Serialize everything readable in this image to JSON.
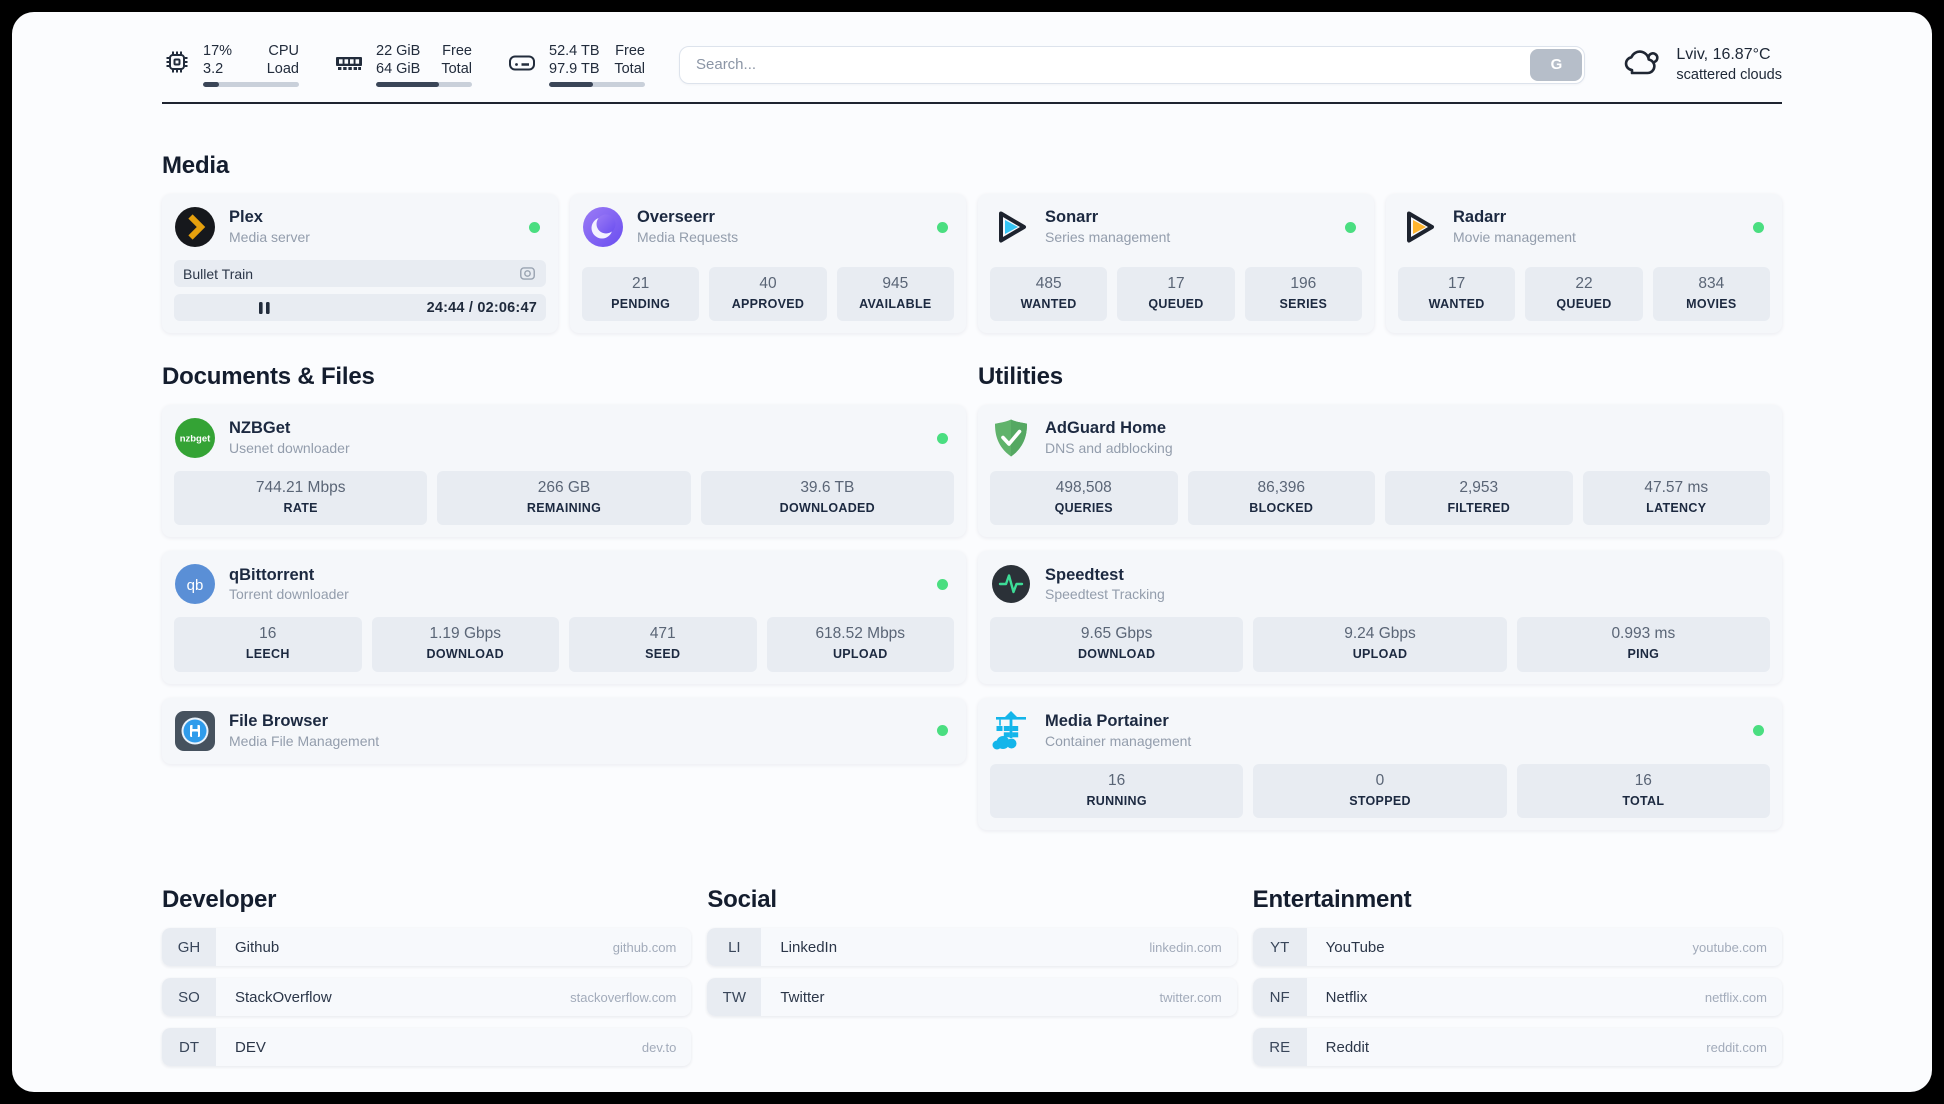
{
  "colors": {
    "status_online": "#4ade80",
    "progress_fill": "#3a4557"
  },
  "header": {
    "stats": [
      {
        "icon": "cpu-icon",
        "value1": "17%",
        "label1": "CPU",
        "value2": "3.2",
        "label2": "Load",
        "progress": 17
      },
      {
        "icon": "ram-icon",
        "value1": "22 GiB",
        "label1": "Free",
        "value2": "64 GiB",
        "label2": "Total",
        "progress": 66
      },
      {
        "icon": "disk-icon",
        "value1": "52.4 TB",
        "label1": "Free",
        "value2": "97.9 TB",
        "label2": "Total",
        "progress": 46
      }
    ],
    "search": {
      "placeholder": "Search...",
      "button_label": "G"
    },
    "weather": {
      "location_temp": "Lviv, 16.87°C",
      "condition": "scattered clouds"
    }
  },
  "sections": {
    "media": "Media",
    "documents": "Documents & Files",
    "utilities": "Utilities",
    "developer": "Developer",
    "social": "Social",
    "entertainment": "Entertainment"
  },
  "apps": {
    "plex": {
      "name": "Plex",
      "description": "Media server",
      "now_playing": "Bullet Train",
      "time": "24:44 / 02:06:47",
      "progress": 19
    },
    "overseerr": {
      "name": "Overseerr",
      "description": "Media Requests",
      "stats": [
        {
          "value": "21",
          "label": "PENDING"
        },
        {
          "value": "40",
          "label": "APPROVED"
        },
        {
          "value": "945",
          "label": "AVAILABLE"
        }
      ]
    },
    "sonarr": {
      "name": "Sonarr",
      "description": "Series management",
      "stats": [
        {
          "value": "485",
          "label": "WANTED"
        },
        {
          "value": "17",
          "label": "QUEUED"
        },
        {
          "value": "196",
          "label": "SERIES"
        }
      ]
    },
    "radarr": {
      "name": "Radarr",
      "description": "Movie management",
      "stats": [
        {
          "value": "17",
          "label": "WANTED"
        },
        {
          "value": "22",
          "label": "QUEUED"
        },
        {
          "value": "834",
          "label": "MOVIES"
        }
      ]
    },
    "nzbget": {
      "name": "NZBGet",
      "description": "Usenet downloader",
      "stats": [
        {
          "value": "744.21 Mbps",
          "label": "RATE"
        },
        {
          "value": "266 GB",
          "label": "REMAINING"
        },
        {
          "value": "39.6 TB",
          "label": "DOWNLOADED"
        }
      ]
    },
    "qbittorrent": {
      "name": "qBittorrent",
      "description": "Torrent downloader",
      "stats": [
        {
          "value": "16",
          "label": "LEECH"
        },
        {
          "value": "1.19 Gbps",
          "label": "DOWNLOAD"
        },
        {
          "value": "471",
          "label": "SEED"
        },
        {
          "value": "618.52 Mbps",
          "label": "UPLOAD"
        }
      ]
    },
    "filebrowser": {
      "name": "File Browser",
      "description": "Media File Management"
    },
    "adguard": {
      "name": "AdGuard Home",
      "description": "DNS and adblocking",
      "stats": [
        {
          "value": "498,508",
          "label": "QUERIES"
        },
        {
          "value": "86,396",
          "label": "BLOCKED"
        },
        {
          "value": "2,953",
          "label": "FILTERED"
        },
        {
          "value": "47.57 ms",
          "label": "LATENCY"
        }
      ]
    },
    "speedtest": {
      "name": "Speedtest",
      "description": "Speedtest Tracking",
      "stats": [
        {
          "value": "9.65 Gbps",
          "label": "DOWNLOAD"
        },
        {
          "value": "9.24 Gbps",
          "label": "UPLOAD"
        },
        {
          "value": "0.993 ms",
          "label": "PING"
        }
      ]
    },
    "portainer": {
      "name": "Media Portainer",
      "description": "Container management",
      "stats": [
        {
          "value": "16",
          "label": "RUNNING"
        },
        {
          "value": "0",
          "label": "STOPPED"
        },
        {
          "value": "16",
          "label": "TOTAL"
        }
      ]
    }
  },
  "bookmarks": {
    "developer": [
      {
        "abbr": "GH",
        "name": "Github",
        "url": "github.com"
      },
      {
        "abbr": "SO",
        "name": "StackOverflow",
        "url": "stackoverflow.com"
      },
      {
        "abbr": "DT",
        "name": "DEV",
        "url": "dev.to"
      }
    ],
    "social": [
      {
        "abbr": "LI",
        "name": "LinkedIn",
        "url": "linkedin.com"
      },
      {
        "abbr": "TW",
        "name": "Twitter",
        "url": "twitter.com"
      }
    ],
    "entertainment": [
      {
        "abbr": "YT",
        "name": "YouTube",
        "url": "youtube.com"
      },
      {
        "abbr": "NF",
        "name": "Netflix",
        "url": "netflix.com"
      },
      {
        "abbr": "RE",
        "name": "Reddit",
        "url": "reddit.com"
      }
    ]
  }
}
